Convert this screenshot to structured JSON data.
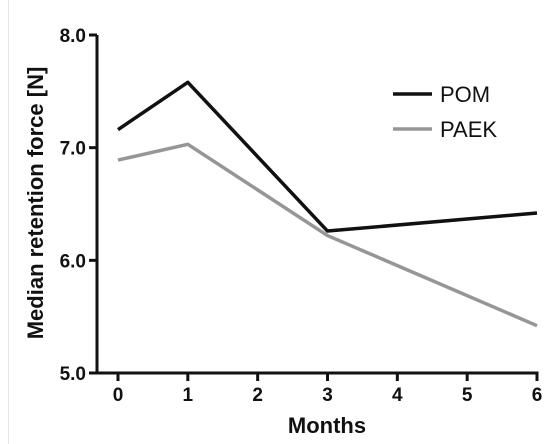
{
  "chart_data": {
    "type": "line",
    "title": "",
    "xlabel": "Months",
    "ylabel": "Median retention force [N]",
    "x": [
      0,
      1,
      2,
      3,
      4,
      5,
      6
    ],
    "x_tick_labels": [
      "0",
      "1",
      "2",
      "3",
      "4",
      "5",
      "6"
    ],
    "y_tick_labels": [
      "5.0",
      "6.0",
      "7.0",
      "8.0"
    ],
    "xlim": [
      0,
      6
    ],
    "ylim": [
      5.0,
      8.0
    ],
    "grid": false,
    "legend_position": "top-right",
    "series": [
      {
        "name": "POM",
        "color": "#111111",
        "points": [
          [
            0,
            7.16
          ],
          [
            1,
            7.58
          ],
          [
            3,
            6.26
          ],
          [
            6,
            6.42
          ]
        ]
      },
      {
        "name": "PAEK",
        "color": "#969696",
        "points": [
          [
            0,
            6.89
          ],
          [
            1,
            7.03
          ],
          [
            3,
            6.22
          ],
          [
            6,
            5.42
          ]
        ]
      }
    ]
  }
}
